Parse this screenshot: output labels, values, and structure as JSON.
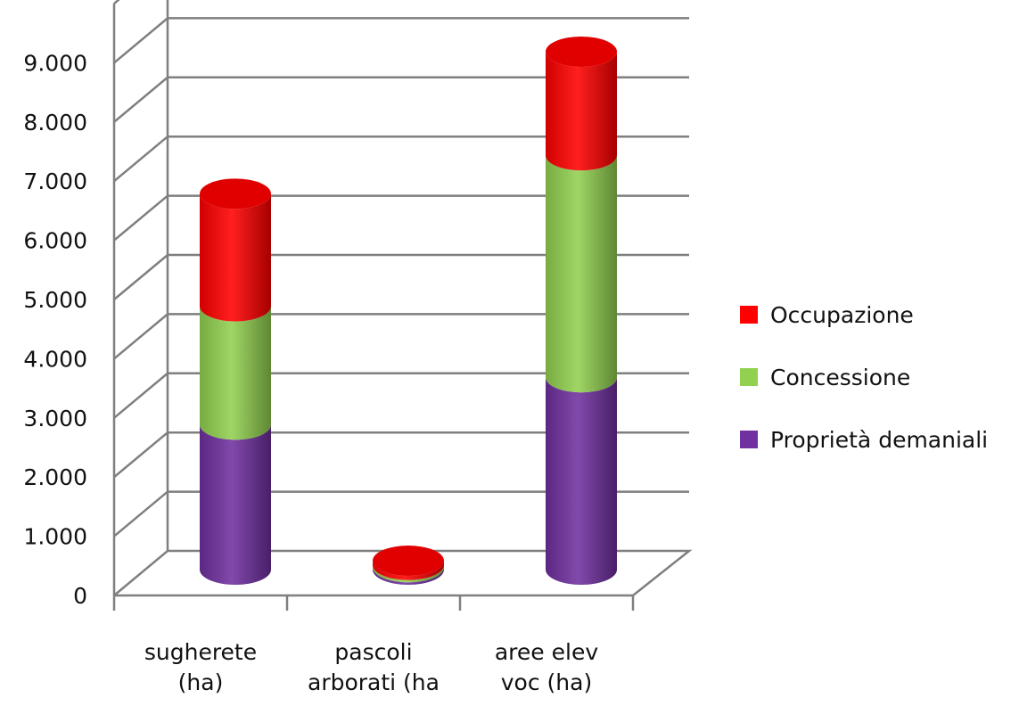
{
  "chart_data": {
    "type": "bar",
    "stacked": true,
    "style": "3d-cylinder",
    "title": "",
    "xlabel": "",
    "ylabel": "",
    "ylim": [
      0,
      9000
    ],
    "yticks": [
      "0",
      "1.000",
      "2.000",
      "3.000",
      "4.000",
      "5.000",
      "6.000",
      "7.000",
      "8.000",
      "9.000"
    ],
    "grid": true,
    "legend_position": "right",
    "categories": [
      [
        "sugherete",
        "(ha)"
      ],
      [
        "pascoli",
        "arborati (ha"
      ],
      [
        "aree elev",
        "voc (ha)"
      ]
    ],
    "series": [
      {
        "name": "Proprietà demaniali",
        "color": "#7030a0",
        "values": [
          2450,
          40,
          3250
        ]
      },
      {
        "name": "Concessione",
        "color": "#92d050",
        "values": [
          2000,
          40,
          3750
        ]
      },
      {
        "name": "Occupazione",
        "color": "#ff0000",
        "values": [
          1900,
          70,
          1750
        ]
      }
    ],
    "legend_order": [
      2,
      1,
      0
    ]
  }
}
